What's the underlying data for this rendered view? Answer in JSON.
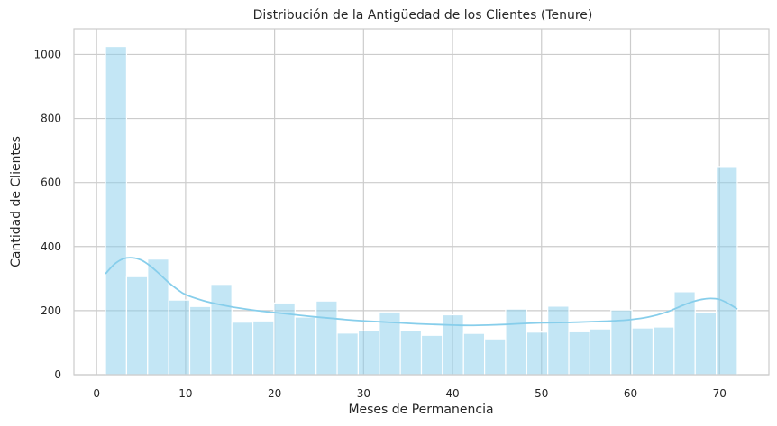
{
  "chart_data": {
    "type": "bar",
    "title": "Distribución de la Antigüedad de los Clientes (Tenure)",
    "xlabel": "Meses de Permanencia",
    "ylabel": "Cantidad de Clientes",
    "xlim": [
      -2.55,
      75.55
    ],
    "ylim": [
      0,
      1080
    ],
    "xticks": [
      0,
      10,
      20,
      30,
      40,
      50,
      60,
      70
    ],
    "yticks": [
      0,
      200,
      400,
      600,
      800,
      1000
    ],
    "grid": true,
    "bin_start": 1,
    "bin_width": 2.3667,
    "values": [
      1025,
      306,
      361,
      233,
      213,
      282,
      164,
      168,
      224,
      180,
      230,
      130,
      137,
      196,
      137,
      123,
      187,
      129,
      112,
      205,
      133,
      214,
      134,
      143,
      202,
      146,
      149,
      259,
      193,
      650
    ],
    "kde": {
      "x": [
        1,
        2,
        3,
        4,
        5,
        6,
        7,
        8,
        9,
        10,
        12,
        14,
        16,
        18,
        20,
        22,
        24,
        26,
        28,
        30,
        32,
        34,
        36,
        38,
        40,
        42,
        44,
        46,
        48,
        50,
        52,
        54,
        56,
        58,
        60,
        62,
        64,
        66,
        67,
        68,
        69,
        70,
        71,
        72
      ],
      "y": [
        315,
        345,
        362,
        365,
        358,
        340,
        316,
        290,
        268,
        250,
        231,
        218,
        208,
        200,
        194,
        188,
        182,
        177,
        172,
        168,
        165,
        162,
        159,
        157,
        155,
        154,
        155,
        157,
        160,
        162,
        163,
        164,
        166,
        168,
        172,
        180,
        195,
        218,
        228,
        235,
        238,
        235,
        222,
        205
      ]
    },
    "colors": {
      "bar": "#87ceeb",
      "kde": "#87ceeb"
    }
  }
}
